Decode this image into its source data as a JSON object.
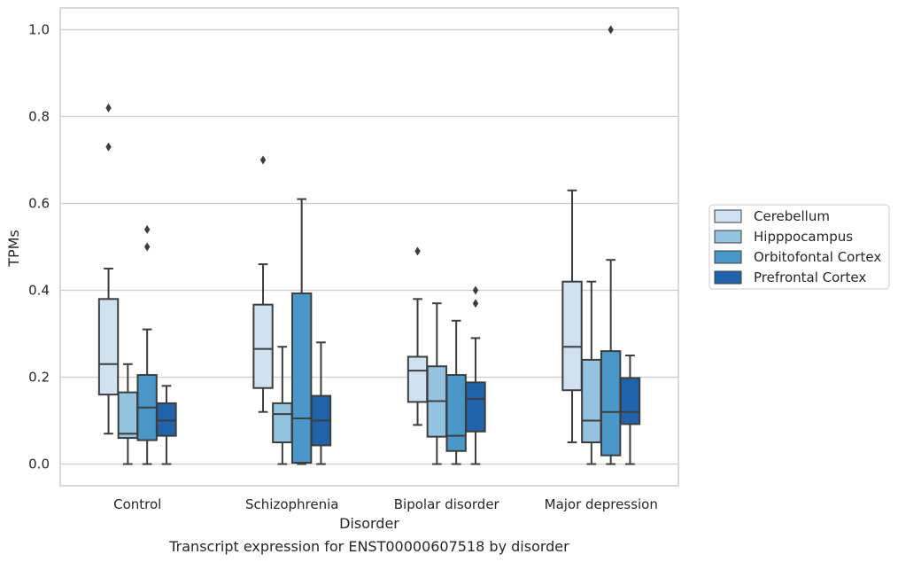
{
  "chart_data": {
    "type": "box",
    "caption": "Transcript expression for ENST00000607518 by disorder",
    "xlabel": "Disorder",
    "ylabel": "TPMs",
    "ylim": [
      -0.05,
      1.05
    ],
    "yticks": [
      0.0,
      0.2,
      0.4,
      0.6,
      0.8,
      1.0
    ],
    "ytick_labels": [
      "0.0",
      "0.2",
      "0.4",
      "0.6",
      "0.8",
      "1.0"
    ],
    "grid": "horizontal",
    "legend_position": "right",
    "categories": [
      "Control",
      "Schizophrenia",
      "Bipolar disorder",
      "Major depression"
    ],
    "series": [
      {
        "name": "Cerebellum",
        "color": "#d0e1f2",
        "boxes": [
          {
            "whislo": 0.07,
            "q1": 0.16,
            "med": 0.23,
            "q3": 0.38,
            "whishi": 0.45,
            "fliers": [
              0.73,
              0.82
            ]
          },
          {
            "whislo": 0.12,
            "q1": 0.175,
            "med": 0.265,
            "q3": 0.367,
            "whishi": 0.46,
            "fliers": [
              0.7
            ]
          },
          {
            "whislo": 0.09,
            "q1": 0.143,
            "med": 0.215,
            "q3": 0.247,
            "whishi": 0.38,
            "fliers": [
              0.49
            ]
          },
          {
            "whislo": 0.05,
            "q1": 0.17,
            "med": 0.27,
            "q3": 0.42,
            "whishi": 0.63,
            "fliers": []
          }
        ]
      },
      {
        "name": "Hipppocampus",
        "color": "#94c4df",
        "boxes": [
          {
            "whislo": 0.0,
            "q1": 0.06,
            "med": 0.07,
            "q3": 0.165,
            "whishi": 0.23,
            "fliers": []
          },
          {
            "whislo": 0.0,
            "q1": 0.05,
            "med": 0.115,
            "q3": 0.14,
            "whishi": 0.27,
            "fliers": []
          },
          {
            "whislo": 0.0,
            "q1": 0.063,
            "med": 0.145,
            "q3": 0.225,
            "whishi": 0.37,
            "fliers": []
          },
          {
            "whislo": 0.0,
            "q1": 0.05,
            "med": 0.1,
            "q3": 0.24,
            "whishi": 0.42,
            "fliers": []
          }
        ]
      },
      {
        "name": "Orbitofontal Cortex",
        "color": "#4a98c9",
        "boxes": [
          {
            "whislo": 0.0,
            "q1": 0.055,
            "med": 0.13,
            "q3": 0.205,
            "whishi": 0.31,
            "fliers": [
              0.5,
              0.54
            ]
          },
          {
            "whislo": 0.0,
            "q1": 0.003,
            "med": 0.105,
            "q3": 0.393,
            "whishi": 0.61,
            "fliers": []
          },
          {
            "whislo": 0.0,
            "q1": 0.03,
            "med": 0.065,
            "q3": 0.205,
            "whishi": 0.33,
            "fliers": []
          },
          {
            "whislo": 0.0,
            "q1": 0.02,
            "med": 0.12,
            "q3": 0.26,
            "whishi": 0.47,
            "fliers": [
              1.0
            ]
          }
        ]
      },
      {
        "name": "Prefrontal Cortex",
        "color": "#2163aa",
        "boxes": [
          {
            "whislo": 0.0,
            "q1": 0.065,
            "med": 0.1,
            "q3": 0.14,
            "whishi": 0.18,
            "fliers": []
          },
          {
            "whislo": 0.0,
            "q1": 0.043,
            "med": 0.1,
            "q3": 0.157,
            "whishi": 0.28,
            "fliers": []
          },
          {
            "whislo": 0.0,
            "q1": 0.075,
            "med": 0.15,
            "q3": 0.188,
            "whishi": 0.29,
            "fliers": [
              0.37,
              0.4
            ]
          },
          {
            "whislo": 0.0,
            "q1": 0.092,
            "med": 0.12,
            "q3": 0.198,
            "whishi": 0.25,
            "fliers": []
          }
        ]
      }
    ]
  }
}
